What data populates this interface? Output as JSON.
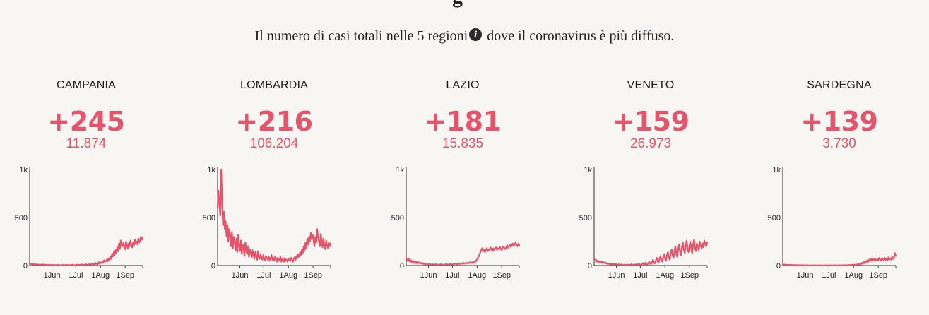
{
  "header": {
    "title_partial": "g",
    "subtitle_before": "Il numero di casi totali nelle 5 regioni",
    "info_icon": "info-icon",
    "subtitle_after": " dove il coronavirus è più diffuso."
  },
  "colors": {
    "accent": "#e4546a",
    "background": "#f8f6f3"
  },
  "regions": [
    {
      "name": "CAMPANIA",
      "delta": "+245",
      "total": "11.874"
    },
    {
      "name": "LOMBARDIA",
      "delta": "+216",
      "total": "106.204"
    },
    {
      "name": "LAZIO",
      "delta": "+181",
      "total": "15.835"
    },
    {
      "name": "VENETO",
      "delta": "+159",
      "total": "26.973"
    },
    {
      "name": "SARDEGNA",
      "delta": "+139",
      "total": "3.730"
    }
  ],
  "chart_data": [
    {
      "type": "line",
      "title": "CAMPANIA",
      "x_start": "2020-05-04",
      "x_end": "2020-09-23",
      "ylim": [
        0,
        1000
      ],
      "yticks": [
        "1k",
        "500",
        "0"
      ],
      "xticks": [
        "1Jun",
        "1Jul",
        "1Aug",
        "1Sep"
      ],
      "values": [
        22,
        18,
        15,
        20,
        12,
        14,
        16,
        10,
        12,
        9,
        11,
        8,
        10,
        7,
        9,
        12,
        8,
        6,
        10,
        8,
        6,
        5,
        9,
        7,
        4,
        6,
        8,
        5,
        3,
        6,
        4,
        5,
        7,
        3,
        4,
        2,
        5,
        3,
        6,
        2,
        4,
        8,
        3,
        5,
        2,
        7,
        4,
        3,
        6,
        9,
        5,
        4,
        3,
        7,
        10,
        6,
        4,
        8,
        5,
        12,
        7,
        9,
        4,
        6,
        14,
        10,
        8,
        6,
        15,
        9,
        7,
        22,
        12,
        18,
        10,
        28,
        16,
        24,
        14,
        35,
        20,
        30,
        26,
        42,
        30,
        55,
        40,
        48,
        60,
        44,
        75,
        58,
        90,
        70,
        120,
        95,
        140,
        110,
        160,
        130,
        190,
        150,
        230,
        180,
        260,
        210,
        200,
        240,
        190,
        170,
        250,
        210,
        180,
        230,
        200,
        260,
        220,
        190,
        240,
        210,
        270,
        230,
        250,
        220,
        280,
        240,
        260,
        300,
        270,
        290
      ]
    },
    {
      "type": "line",
      "title": "LOMBARDIA",
      "x_start": "2020-05-04",
      "x_end": "2020-09-23",
      "ylim": [
        0,
        1000
      ],
      "yticks": [
        "1k",
        "500",
        "0"
      ],
      "xticks": [
        "1Jun",
        "1Jul",
        "1Aug",
        "1Sep"
      ],
      "values": [
        600,
        780,
        650,
        520,
        1000,
        680,
        420,
        560,
        380,
        460,
        300,
        420,
        250,
        380,
        320,
        200,
        350,
        180,
        300,
        250,
        160,
        280,
        140,
        320,
        200,
        150,
        260,
        120,
        220,
        180,
        100,
        240,
        160,
        120,
        200,
        90,
        170,
        140,
        80,
        160,
        110,
        70,
        140,
        100,
        60,
        150,
        90,
        70,
        120,
        80,
        60,
        110,
        70,
        50,
        100,
        80,
        60,
        90,
        50,
        70,
        110,
        60,
        80,
        50,
        90,
        70,
        40,
        80,
        60,
        50,
        90,
        40,
        70,
        60,
        40,
        80,
        50,
        60,
        40,
        70,
        60,
        50,
        80,
        60,
        40,
        70,
        90,
        60,
        100,
        80,
        120,
        90,
        140,
        110,
        170,
        130,
        200,
        160,
        240,
        180,
        280,
        220,
        300,
        250,
        340,
        280,
        320,
        260,
        200,
        300,
        240,
        380,
        300,
        250,
        200,
        330,
        260,
        190,
        280,
        220,
        170,
        260,
        210,
        180,
        240,
        200,
        230
      ]
    },
    {
      "type": "line",
      "title": "LAZIO",
      "x_start": "2020-05-04",
      "x_end": "2020-09-23",
      "ylim": [
        0,
        1000
      ],
      "yticks": [
        "1k",
        "500",
        "0"
      ],
      "xticks": [
        "1Jun",
        "1Jul",
        "1Aug",
        "1Sep"
      ],
      "values": [
        80,
        60,
        45,
        70,
        40,
        55,
        35,
        50,
        30,
        45,
        25,
        40,
        20,
        35,
        30,
        20,
        28,
        18,
        25,
        15,
        22,
        12,
        20,
        15,
        10,
        18,
        12,
        8,
        15,
        10,
        12,
        8,
        14,
        10,
        6,
        12,
        8,
        10,
        14,
        9,
        7,
        12,
        10,
        8,
        15,
        11,
        9,
        13,
        16,
        12,
        10,
        18,
        14,
        20,
        16,
        12,
        22,
        18,
        15,
        25,
        20,
        17,
        28,
        22,
        19,
        30,
        25,
        22,
        28,
        35,
        30,
        26,
        38,
        32,
        45,
        40,
        60,
        70,
        90,
        110,
        140,
        160,
        180,
        150,
        170,
        140,
        160,
        180,
        150,
        170,
        160,
        190,
        170,
        150,
        180,
        160,
        175,
        190,
        165,
        180,
        170,
        195,
        175,
        160,
        185,
        200,
        180,
        170,
        190,
        210,
        185,
        200,
        220,
        195,
        210,
        230,
        205,
        220,
        240,
        215,
        200,
        225,
        210
      ]
    },
    {
      "type": "line",
      "title": "VENETO",
      "x_start": "2020-05-04",
      "x_end": "2020-09-23",
      "ylim": [
        0,
        1000
      ],
      "yticks": [
        "1k",
        "500",
        "0"
      ],
      "xticks": [
        "1Jun",
        "1Jul",
        "1Aug",
        "1Sep"
      ],
      "values": [
        70,
        55,
        60,
        40,
        50,
        35,
        45,
        30,
        40,
        25,
        35,
        30,
        20,
        28,
        18,
        25,
        15,
        22,
        12,
        20,
        10,
        18,
        8,
        15,
        12,
        6,
        14,
        10,
        5,
        12,
        8,
        4,
        10,
        7,
        5,
        12,
        6,
        9,
        4,
        8,
        14,
        6,
        10,
        5,
        12,
        8,
        15,
        7,
        20,
        10,
        6,
        14,
        25,
        12,
        8,
        30,
        16,
        10,
        22,
        40,
        20,
        15,
        35,
        60,
        30,
        22,
        50,
        80,
        45,
        30,
        70,
        100,
        55,
        40,
        90,
        120,
        70,
        50,
        110,
        140,
        80,
        60,
        130,
        170,
        100,
        80,
        150,
        200,
        120,
        90,
        170,
        220,
        140,
        110,
        190,
        240,
        160,
        130,
        210,
        260,
        180,
        140,
        200,
        250,
        170,
        130,
        220,
        270,
        190,
        150,
        230,
        200,
        160,
        250,
        210,
        180,
        230,
        190,
        260,
        220,
        200,
        240
      ]
    },
    {
      "type": "line",
      "title": "SARDEGNA",
      "x_start": "2020-05-04",
      "x_end": "2020-09-23",
      "ylim": [
        0,
        1000
      ],
      "yticks": [
        "1k",
        "500",
        "0"
      ],
      "xticks": [
        "1Jun",
        "1Jul",
        "1Aug",
        "1Sep"
      ],
      "values": [
        12,
        8,
        10,
        6,
        9,
        5,
        8,
        4,
        7,
        5,
        6,
        3,
        5,
        4,
        6,
        2,
        4,
        3,
        5,
        2,
        3,
        4,
        2,
        3,
        1,
        3,
        2,
        4,
        1,
        2,
        3,
        1,
        2,
        1,
        3,
        2,
        1,
        2,
        1,
        2,
        3,
        1,
        2,
        1,
        2,
        1,
        3,
        2,
        1,
        2,
        1,
        2,
        3,
        1,
        2,
        1,
        2,
        3,
        2,
        1,
        2,
        3,
        2,
        1,
        3,
        2,
        4,
        2,
        3,
        5,
        3,
        4,
        6,
        4,
        5,
        8,
        5,
        7,
        10,
        6,
        12,
        8,
        15,
        10,
        20,
        14,
        28,
        18,
        35,
        25,
        45,
        30,
        55,
        40,
        60,
        45,
        70,
        50,
        65,
        55,
        75,
        60,
        50,
        70,
        55,
        80,
        60,
        50,
        75,
        65,
        55,
        80,
        60,
        70,
        50,
        85,
        65,
        75,
        60,
        90,
        70,
        80,
        130,
        100
      ]
    }
  ]
}
